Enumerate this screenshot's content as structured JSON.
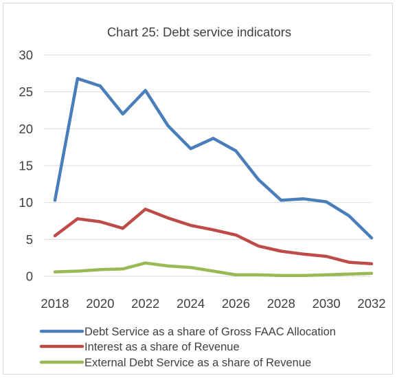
{
  "chart_data": {
    "type": "line",
    "title": "Chart 25: Debt service indicators",
    "xlabel": "",
    "ylabel": "",
    "x": [
      2018,
      2019,
      2020,
      2021,
      2022,
      2023,
      2024,
      2025,
      2026,
      2027,
      2028,
      2029,
      2030,
      2031,
      2032
    ],
    "x_ticks": [
      2018,
      2020,
      2022,
      2024,
      2026,
      2028,
      2030,
      2032
    ],
    "y_ticks": [
      0,
      5,
      10,
      15,
      20,
      25,
      30
    ],
    "xlim": [
      2018,
      2032
    ],
    "ylim": [
      0,
      30
    ],
    "grid": "horizontal",
    "legend_position": "bottom",
    "series": [
      {
        "name": "Debt Service as a share of Gross FAAC Allocation",
        "color": "#4a7ebb",
        "values": [
          10.3,
          26.8,
          25.8,
          22.0,
          25.2,
          20.4,
          17.3,
          18.7,
          17.0,
          13.1,
          10.3,
          10.5,
          10.1,
          8.2,
          5.2
        ]
      },
      {
        "name": "Interest as a share of Revenue",
        "color": "#be4b48",
        "values": [
          5.5,
          7.8,
          7.4,
          6.5,
          9.1,
          7.9,
          6.9,
          6.3,
          5.6,
          4.1,
          3.4,
          3.0,
          2.7,
          1.9,
          1.7
        ]
      },
      {
        "name": "External Debt Service as a share of Revenue",
        "color": "#98b954",
        "values": [
          0.6,
          0.7,
          0.9,
          1.0,
          1.8,
          1.4,
          1.2,
          0.7,
          0.2,
          0.2,
          0.1,
          0.1,
          0.2,
          0.3,
          0.4
        ]
      }
    ],
    "gridline_color": "#d9d9d9"
  }
}
